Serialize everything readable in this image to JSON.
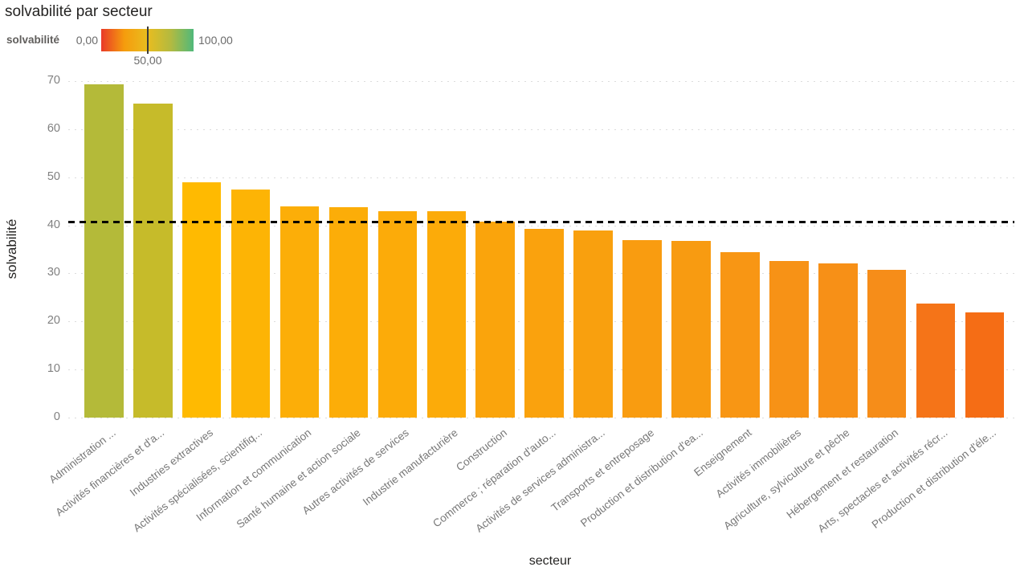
{
  "title": "solvabilité par secteur",
  "legend": {
    "label": "solvabilité",
    "min": "0,00",
    "mid": "50,00",
    "max": "100,00",
    "gradient_stops": [
      "#e93a28",
      "#f59c0d",
      "#e9bd1f",
      "#b4ba3f",
      "#50b97b"
    ]
  },
  "chart_data": {
    "type": "bar",
    "title": "solvabilité par secteur",
    "xlabel": "secteur",
    "ylabel": "solvabilité",
    "ylim": [
      0,
      70
    ],
    "y_ticks": [
      0,
      10,
      20,
      30,
      40,
      50,
      60,
      70
    ],
    "grid": "horizontal dotted",
    "legend_position": "top-left",
    "reference_line": {
      "value": 40.7,
      "style": "black dashed",
      "meaning": "average"
    },
    "color_scale": {
      "field": "solvabilité",
      "min": 0,
      "mid": 50,
      "max": 100
    },
    "categories": [
      "Administration ...",
      "Activités financières et d'a...",
      "Industries extractives",
      "Activités spécialisées, scientifiq...",
      "Information et communication",
      "Santé humaine et action sociale",
      "Autres activités de services",
      "Industrie manufacturière",
      "Construction",
      "Commerce ; réparation d'auto...",
      "Activités de services administra...",
      "Transports et entreposage",
      "Production et distribution d'ea...",
      "Enseignement",
      "Activités immobilières",
      "Agriculture, sylviculture et pêche",
      "Hébergement et restauration",
      "Arts, spectacles et activités récr...",
      "Production et distribution d'éle..."
    ],
    "values": [
      69.3,
      65.3,
      49.0,
      47.4,
      43.9,
      43.7,
      43.0,
      43.0,
      40.7,
      39.3,
      39.0,
      37.0,
      36.7,
      34.4,
      32.5,
      32.0,
      30.7,
      23.7,
      21.9
    ],
    "bar_colors": [
      "#b4ba39",
      "#c6bb2a",
      "#ffba01",
      "#fdb405",
      "#fcae08",
      "#fcad08",
      "#fcab09",
      "#fcab09",
      "#faa40c",
      "#faa20d",
      "#f9a00e",
      "#f99c10",
      "#f89b11",
      "#f89614",
      "#f79216",
      "#f79017",
      "#f68d19",
      "#f57418",
      "#f56d15"
    ]
  }
}
